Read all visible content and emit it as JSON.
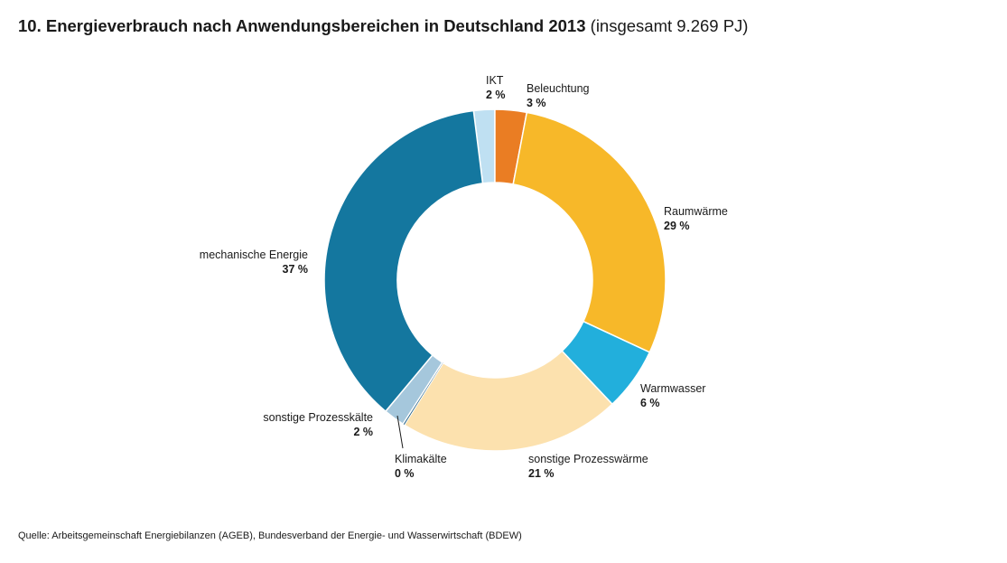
{
  "title": {
    "main": "10. Energieverbrauch nach Anwendungsbereichen in Deutschland 2013",
    "sub": "(insgesamt 9.269 PJ)"
  },
  "chart_data": {
    "type": "pie",
    "donut": true,
    "slices": [
      {
        "name": "IKT",
        "value": 2,
        "value_label": "2 %",
        "color": "#bfe0f2"
      },
      {
        "name": "Beleuchtung",
        "value": 3,
        "value_label": "3 %",
        "color": "#ea7d23"
      },
      {
        "name": "Raumwärme",
        "value": 29,
        "value_label": "29 %",
        "color": "#f7b829"
      },
      {
        "name": "Warmwasser",
        "value": 6,
        "value_label": "6 %",
        "color": "#22afdc"
      },
      {
        "name": "sonstige Prozesswärme",
        "value": 21,
        "value_label": "21 %",
        "color": "#fce1ae"
      },
      {
        "name": "Klimakälte",
        "value": 0,
        "value_label": "0 %",
        "color": "#1a5a80"
      },
      {
        "name": "sonstige Prozesskälte",
        "value": 2,
        "value_label": "2 %",
        "color": "#a5c7dc"
      },
      {
        "name": "mechanische Energie",
        "value": 37,
        "value_label": "37 %",
        "color": "#14779f"
      }
    ]
  },
  "source": "Quelle: Arbeitsgemeinschaft Energiebilanzen (AGEB), Bundesverband der Energie- und Wasserwirtschaft (BDEW)"
}
